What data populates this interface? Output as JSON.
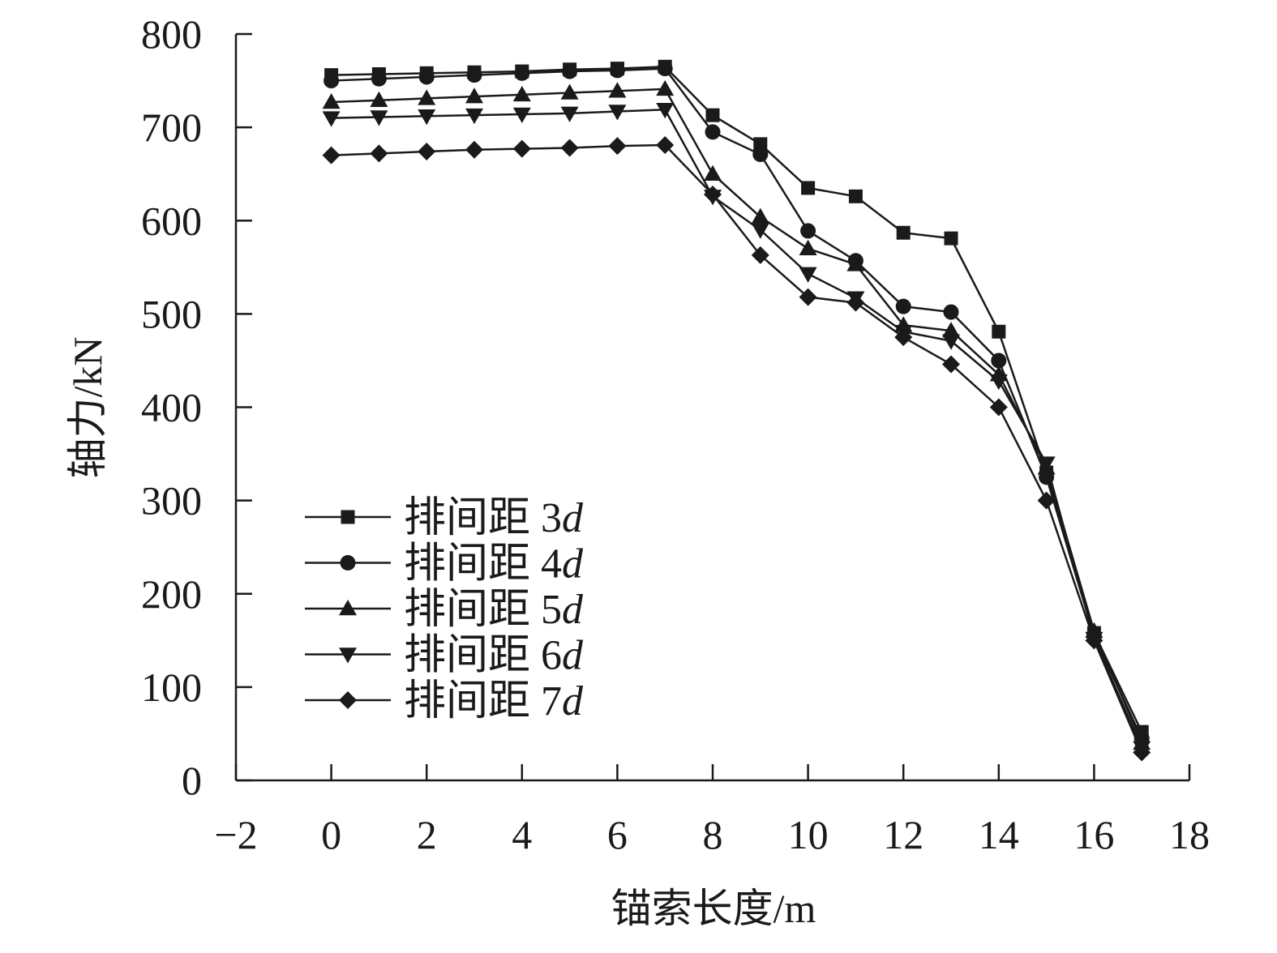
{
  "chart_data": {
    "type": "line",
    "title": "",
    "xlabel": "锚索长度/m",
    "ylabel": "轴力/kN",
    "xlim": [
      -2,
      18
    ],
    "ylim": [
      0,
      800
    ],
    "xticks": [
      -2,
      0,
      2,
      4,
      6,
      8,
      10,
      12,
      14,
      16,
      18
    ],
    "yticks": [
      0,
      100,
      200,
      300,
      400,
      500,
      600,
      700,
      800
    ],
    "xtick_labels": [
      "−2",
      "0",
      "2",
      "4",
      "6",
      "8",
      "10",
      "12",
      "14",
      "16",
      "18"
    ],
    "ytick_labels": [
      "0",
      "100",
      "200",
      "300",
      "400",
      "500",
      "600",
      "700",
      "800"
    ],
    "grid": false,
    "legend_position": "center-left",
    "x": [
      0,
      1,
      2,
      3,
      4,
      5,
      6,
      7,
      8,
      9,
      10,
      11,
      12,
      13,
      14,
      15,
      16,
      17
    ],
    "series": [
      {
        "name_prefix": "排间距 3",
        "name_italic": "d",
        "marker": "square",
        "values": [
          756,
          757,
          758,
          759,
          760,
          762,
          763,
          765,
          713,
          682,
          635,
          626,
          587,
          581,
          481,
          330,
          158,
          52
        ]
      },
      {
        "name_prefix": "排间距 4",
        "name_italic": "d",
        "marker": "circle",
        "values": [
          750,
          752,
          754,
          756,
          758,
          760,
          761,
          763,
          695,
          671,
          589,
          557,
          508,
          502,
          450,
          325,
          155,
          45
        ]
      },
      {
        "name_prefix": "排间距 5",
        "name_italic": "d",
        "marker": "triangle-up",
        "values": [
          727,
          729,
          731,
          733,
          735,
          737,
          739,
          741,
          650,
          604,
          570,
          553,
          488,
          482,
          435,
          335,
          160,
          40
        ]
      },
      {
        "name_prefix": "排间距 6",
        "name_italic": "d",
        "marker": "triangle-down",
        "values": [
          710,
          711,
          712,
          713,
          714,
          715,
          717,
          719,
          626,
          590,
          543,
          517,
          481,
          471,
          428,
          340,
          152,
          35
        ]
      },
      {
        "name_prefix": "排间距 7",
        "name_italic": "d",
        "marker": "diamond",
        "values": [
          670,
          672,
          674,
          676,
          677,
          678,
          680,
          681,
          628,
          563,
          518,
          512,
          475,
          446,
          400,
          300,
          150,
          30
        ]
      }
    ],
    "colors": {
      "line": "#1a1a1a",
      "background": "#ffffff"
    }
  }
}
